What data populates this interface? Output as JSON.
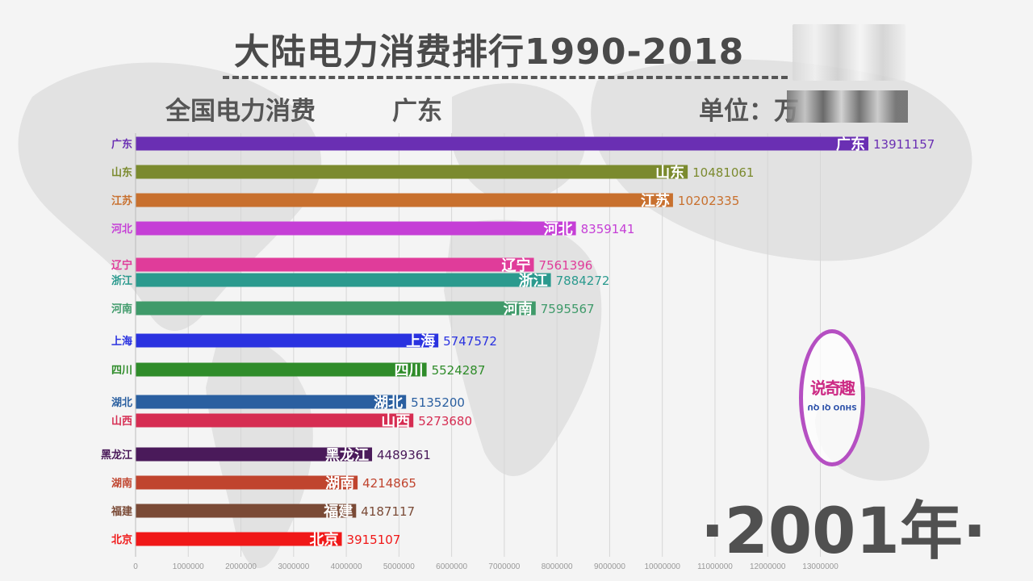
{
  "header": {
    "title": "大陆电力消费排行1990-2018",
    "subtitle_left": "全国电力消费",
    "subtitle_leader": "广东",
    "unit_label": "单位：万"
  },
  "year_label": "·2001年·",
  "logo": {
    "text": "说奇趣",
    "subtext": "SHUO QI QU"
  },
  "chart_data": {
    "type": "bar",
    "orientation": "horizontal",
    "categories": [
      "广东",
      "山东",
      "江苏",
      "河北",
      "辽宁",
      "浙江",
      "河南",
      "上海",
      "四川",
      "湖北",
      "山西",
      "黑龙江",
      "湖南",
      "福建",
      "北京"
    ],
    "values": [
      13911157,
      10481061,
      10202335,
      8359141,
      7561396,
      7884272,
      7595567,
      5747572,
      5524287,
      5135200,
      5273680,
      4489361,
      4214865,
      4187117,
      3915107
    ],
    "value_labels": [
      "13911157",
      "10481061",
      "10202335",
      "8359141",
      "7561396",
      "7884272",
      "7595567",
      "5747572",
      "5524287",
      "5135200",
      "5273680",
      "4489361",
      "4214865",
      "4187117",
      "3915107"
    ],
    "colors": [
      "#6a2fb3",
      "#7b8a2e",
      "#c8702e",
      "#c53fd6",
      "#e03c9a",
      "#2b9a8e",
      "#3f9a6a",
      "#2a32e0",
      "#2f8c2a",
      "#2a5fa0",
      "#d62d52",
      "#4a1a5a",
      "#c0442e",
      "#7a4a36",
      "#f01818"
    ],
    "xlim": [
      0,
      14000000
    ],
    "xticks": [
      0,
      1000000,
      2000000,
      3000000,
      4000000,
      5000000,
      6000000,
      7000000,
      8000000,
      9000000,
      10000000,
      11000000,
      12000000,
      13000000
    ],
    "xtick_labels": [
      "0",
      "1000000",
      "2000000",
      "3000000",
      "4000000",
      "5000000",
      "6000000",
      "7000000",
      "8000000",
      "9000000",
      "10000000",
      "11000000",
      "12000000",
      "13000000"
    ],
    "grid": true,
    "legend": "none"
  }
}
